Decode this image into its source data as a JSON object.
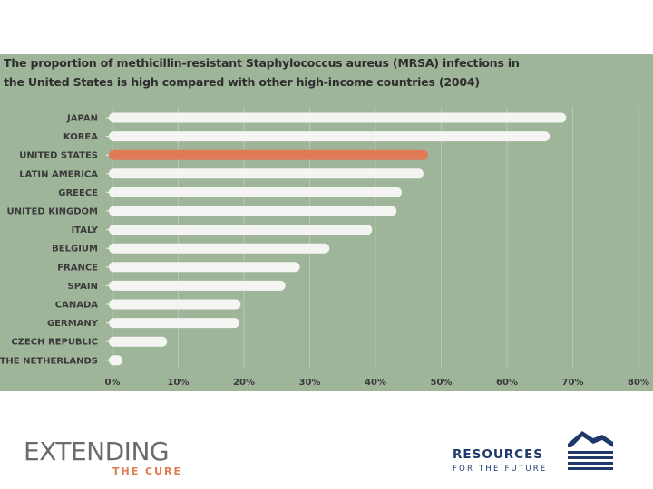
{
  "chart_data": {
    "type": "bar",
    "orientation": "horizontal",
    "title": "The proportion of methicillin-resistant Staphylococcus aureus (MRSA) infections in the United States is high compared with other high-income countries (2004)",
    "title_lines": [
      "The proportion of methicillin-resistant Staphylococcus aureus (MRSA) infections in",
      "the United States is high compared with other high-income countries (2004)"
    ],
    "categories": [
      "JAPAN",
      "KOREA",
      "UNITED STATES",
      "LATIN AMERICA",
      "GREECE",
      "UNITED KINGDOM",
      "ITALY",
      "BELGIUM",
      "FRANCE",
      "SPAIN",
      "CANADA",
      "GERMANY",
      "CZECH REPUBLIC",
      "THE NETHERLANDS"
    ],
    "values": [
      69,
      66.5,
      48,
      47.3,
      44,
      43.2,
      39.5,
      33,
      28.5,
      26.3,
      19.5,
      19.3,
      8.3,
      0.8
    ],
    "highlight": "UNITED STATES",
    "xlim": [
      0,
      80
    ],
    "xticks": [
      0,
      10,
      20,
      30,
      40,
      50,
      60,
      70,
      80
    ],
    "xtick_labels": [
      "0%",
      "10%",
      "20%",
      "30%",
      "40%",
      "50%",
      "60%",
      "70%",
      "80%"
    ],
    "xlabel": "",
    "ylabel": "",
    "grid": true,
    "colors": {
      "bar": "#f4f4f2",
      "highlight": "#e07a57",
      "grid": "#b7c8b2",
      "background": "#9fb59a"
    }
  },
  "logos": {
    "extending_main": "EXTENDING",
    "extending_sub": "THE CURE",
    "rff_line1": "RESOURCES",
    "rff_line2": "FOR THE FUTURE"
  }
}
